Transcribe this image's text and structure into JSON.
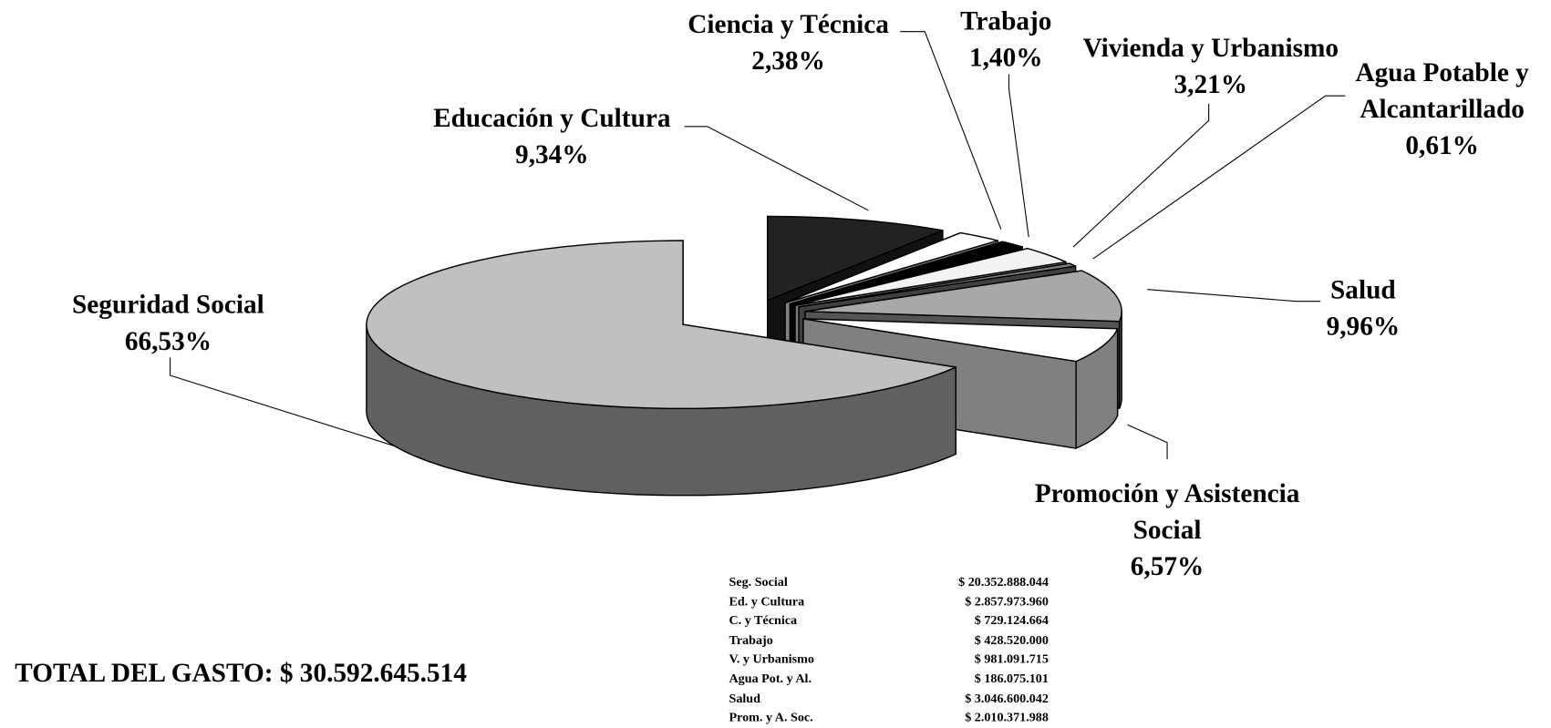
{
  "chart_data": {
    "type": "pie3d",
    "categories": [
      "Seguridad Social",
      "Educación y Cultura",
      "Ciencia y Técnica",
      "Trabajo",
      "Vivienda y Urbanismo",
      "Agua Potable y Alcantarillado",
      "Salud",
      "Promoción y Asistencia Social"
    ],
    "values": [
      66.53,
      9.34,
      2.38,
      1.4,
      3.21,
      0.61,
      9.96,
      6.57
    ],
    "value_labels": [
      "66,53%",
      "9,34%",
      "2,38%",
      "1,40%",
      "3,21%",
      "0,61%",
      "9,96%",
      "6,57%"
    ],
    "colors": [
      "#c0c0c0",
      "#222222",
      "#ffffff",
      "#000000",
      "#f2f2f2",
      "#808080",
      "#a8a8a8",
      "#ffffff"
    ]
  },
  "table": {
    "rows": [
      [
        "Seg. Social",
        "$ 20.352.888.044"
      ],
      [
        "Ed. y Cultura",
        "$ 2.857.973.960"
      ],
      [
        "C. y Técnica",
        "$ 729.124.664"
      ],
      [
        "Trabajo",
        "$ 428.520.000"
      ],
      [
        "V. y Urbanismo",
        "$ 981.091.715"
      ],
      [
        "Agua Pot. y Al.",
        "$ 186.075.101"
      ],
      [
        "Salud",
        "$ 3.046.600.042"
      ],
      [
        "Prom. y A. Soc.",
        "$ 2.010.371.988"
      ]
    ]
  },
  "total_label": "TOTAL DEL GASTO: $ 30.592.645.514"
}
